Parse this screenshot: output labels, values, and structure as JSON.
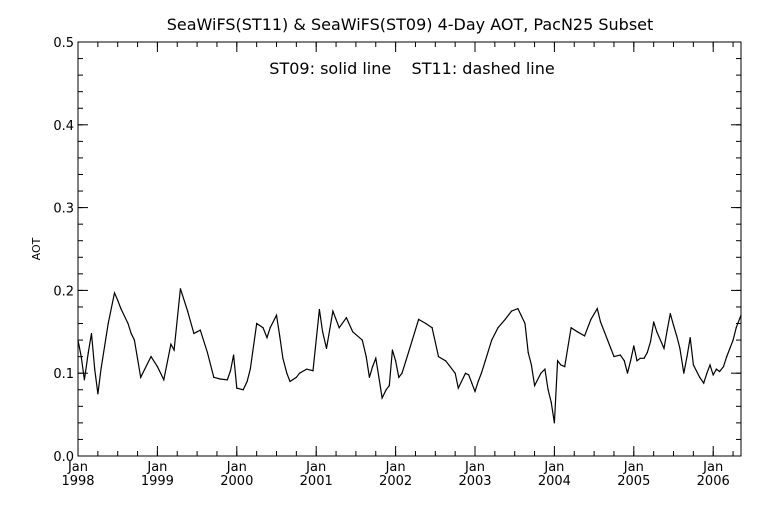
{
  "chart_data": {
    "type": "line",
    "title": "SeaWiFS(ST11) & SeaWiFS(ST09) 4-Day AOT, PacN25 Subset",
    "annotation": "ST09: solid line    ST11: dashed line",
    "ylabel": "AOT",
    "xlabel": "",
    "ylim": [
      0.0,
      0.5
    ],
    "yticks": [
      "0.0",
      "0.1",
      "0.2",
      "0.3",
      "0.4",
      "0.5"
    ],
    "ytick_values": [
      0.0,
      0.1,
      0.2,
      0.3,
      0.4,
      0.5
    ],
    "xlim": [
      1998.0,
      2006.35
    ],
    "xticks": [
      {
        "month": "Jan",
        "year": "1998",
        "x": 1998.0
      },
      {
        "month": "Jan",
        "year": "1999",
        "x": 1999.0
      },
      {
        "month": "Jan",
        "year": "2000",
        "x": 2000.0
      },
      {
        "month": "Jan",
        "year": "2001",
        "x": 2001.0
      },
      {
        "month": "Jan",
        "year": "2002",
        "x": 2002.0
      },
      {
        "month": "Jan",
        "year": "2003",
        "x": 2003.0
      },
      {
        "month": "Jan",
        "year": "2004",
        "x": 2004.0
      },
      {
        "month": "Jan",
        "year": "2005",
        "x": 2005.0
      },
      {
        "month": "Jan",
        "year": "2006",
        "x": 2006.0
      }
    ],
    "grid": false,
    "series": [
      {
        "style": "solid",
        "x": [
          1998.0,
          1998.04,
          1998.08,
          1998.13,
          1998.17,
          1998.21,
          1998.25,
          1998.29,
          1998.38,
          1998.46,
          1998.5,
          1998.54,
          1998.63,
          1998.67,
          1998.71,
          1998.79,
          1998.92,
          1999.0,
          1999.08,
          1999.17,
          1999.21,
          1999.29,
          1999.38,
          1999.46,
          1999.5,
          1999.54,
          1999.63,
          1999.71,
          1999.79,
          1999.88,
          1999.92,
          1999.96,
          2000.0,
          2000.04,
          2000.08,
          2000.13,
          2000.17,
          2000.25,
          2000.33,
          2000.38,
          2000.42,
          2000.5,
          2000.54,
          2000.58,
          2000.63,
          2000.67,
          2000.75,
          2000.79,
          2000.88,
          2000.96,
          2001.04,
          2001.08,
          2001.13,
          2001.21,
          2001.29,
          2001.38,
          2001.46,
          2001.58,
          2001.63,
          2001.67,
          2001.71,
          2001.75,
          2001.79,
          2001.83,
          2001.88,
          2001.92,
          2001.96,
          2002.0,
          2002.04,
          2002.08,
          2002.13,
          2002.21,
          2002.29,
          2002.38,
          2002.46,
          2002.54,
          2002.63,
          2002.67,
          2002.75,
          2002.79,
          2002.88,
          2002.92,
          2002.96,
          2003.0,
          2003.04,
          2003.08,
          2003.13,
          2003.21,
          2003.29,
          2003.38,
          2003.46,
          2003.54,
          2003.58,
          2003.63,
          2003.67,
          2003.71,
          2003.75,
          2003.83,
          2003.88,
          2003.92,
          2003.96,
          2004.0,
          2004.04,
          2004.08,
          2004.13,
          2004.21,
          2004.29,
          2004.38,
          2004.46,
          2004.54,
          2004.58,
          2004.63,
          2004.67,
          2004.71,
          2004.75,
          2004.83,
          2004.88,
          2004.92,
          2004.96,
          2005.0,
          2005.04,
          2005.08,
          2005.13,
          2005.17,
          2005.21,
          2005.25,
          2005.29,
          2005.38,
          2005.42,
          2005.46,
          2005.5,
          2005.54,
          2005.58,
          2005.63,
          2005.67,
          2005.71,
          2005.75,
          2005.83,
          2005.88,
          2005.92,
          2005.96,
          2006.0,
          2006.04,
          2006.08,
          2006.13,
          2006.17,
          2006.21,
          2006.25,
          2006.29,
          2006.35
        ],
        "y": [
          0.14,
          0.12,
          0.092,
          0.125,
          0.148,
          0.105,
          0.075,
          0.105,
          0.16,
          0.197,
          0.188,
          0.178,
          0.16,
          0.148,
          0.14,
          0.095,
          0.12,
          0.108,
          0.092,
          0.135,
          0.128,
          0.202,
          0.175,
          0.148,
          0.15,
          0.152,
          0.125,
          0.095,
          0.093,
          0.092,
          0.103,
          0.122,
          0.082,
          0.081,
          0.08,
          0.09,
          0.105,
          0.16,
          0.155,
          0.143,
          0.155,
          0.17,
          0.145,
          0.118,
          0.1,
          0.09,
          0.095,
          0.1,
          0.105,
          0.103,
          0.177,
          0.15,
          0.13,
          0.175,
          0.155,
          0.167,
          0.15,
          0.14,
          0.12,
          0.095,
          0.108,
          0.118,
          0.095,
          0.07,
          0.08,
          0.085,
          0.128,
          0.115,
          0.095,
          0.1,
          0.115,
          0.14,
          0.165,
          0.16,
          0.155,
          0.12,
          0.115,
          0.11,
          0.1,
          0.082,
          0.1,
          0.098,
          0.088,
          0.078,
          0.09,
          0.1,
          0.115,
          0.14,
          0.155,
          0.165,
          0.175,
          0.178,
          0.17,
          0.16,
          0.125,
          0.11,
          0.085,
          0.1,
          0.105,
          0.08,
          0.065,
          0.04,
          0.115,
          0.11,
          0.108,
          0.155,
          0.15,
          0.145,
          0.165,
          0.178,
          0.162,
          0.15,
          0.14,
          0.13,
          0.12,
          0.122,
          0.115,
          0.1,
          0.115,
          0.133,
          0.115,
          0.118,
          0.118,
          0.125,
          0.138,
          0.162,
          0.15,
          0.13,
          0.152,
          0.172,
          0.158,
          0.145,
          0.13,
          0.1,
          0.12,
          0.143,
          0.11,
          0.095,
          0.088,
          0.1,
          0.11,
          0.098,
          0.105,
          0.102,
          0.108,
          0.12,
          0.13,
          0.14,
          0.155,
          0.17
        ]
      }
    ]
  }
}
